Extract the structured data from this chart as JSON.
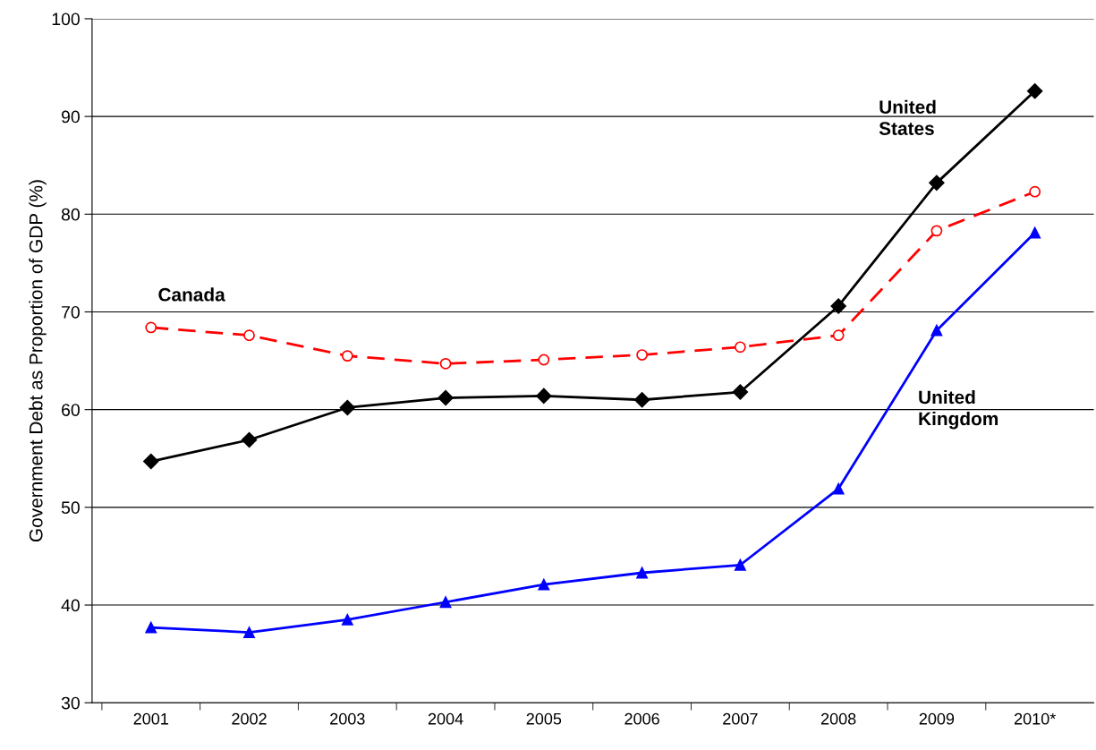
{
  "chart_data": {
    "type": "line",
    "ylabel": "Government Debt as Proportion of GDP (%)",
    "categories": [
      "2001",
      "2002",
      "2003",
      "2004",
      "2005",
      "2006",
      "2007",
      "2008",
      "2009",
      "2010*"
    ],
    "series": [
      {
        "name": "United States",
        "color": "#000000",
        "marker": "diamond",
        "line_style": "solid",
        "values": [
          54.7,
          56.9,
          60.2,
          61.2,
          61.4,
          61.0,
          61.8,
          70.6,
          83.2,
          92.6
        ]
      },
      {
        "name": "Canada",
        "color": "#ff0000",
        "marker": "circle",
        "line_style": "dashed",
        "values": [
          68.4,
          67.6,
          65.5,
          64.7,
          65.1,
          65.6,
          66.4,
          67.6,
          78.3,
          82.3
        ]
      },
      {
        "name": "United Kingdom",
        "color": "#0000ff",
        "marker": "triangle",
        "line_style": "solid",
        "values": [
          37.7,
          37.2,
          38.5,
          40.3,
          42.1,
          43.3,
          44.1,
          51.9,
          68.1,
          78.1
        ]
      }
    ],
    "ylim": [
      30,
      100
    ],
    "yticks": [
      30,
      40,
      50,
      60,
      70,
      80,
      90,
      100
    ],
    "grid": "y",
    "legend": false
  }
}
